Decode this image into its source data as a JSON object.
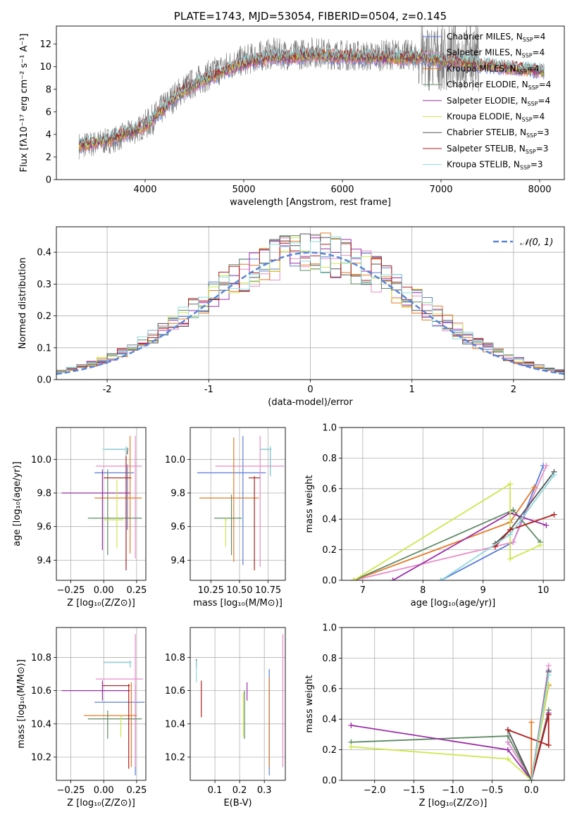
{
  "colors": [
    "#5b7fd8",
    "#e98dc8",
    "#e47a27",
    "#5f8a64",
    "#9b2ea8",
    "#cfe64e",
    "#555555",
    "#b01c1c",
    "#8fd8dc"
  ],
  "charts": [
    {
      "id": "spectrum",
      "type": "line",
      "title": "PLATE=1743, MJD=53054, FIBERID=0504, z=0.145",
      "xlabel": "wavelength [Angstrom, rest frame]",
      "ylabel": "Flux [fλ10⁻¹⁷ erg cm⁻² s⁻¹ A⁻¹]",
      "xlim": [
        3100,
        8250
      ],
      "ylim": [
        0,
        13.6
      ],
      "xticks": [
        4000,
        5000,
        6000,
        7000,
        8000
      ],
      "yticks": [
        0,
        2,
        4,
        6,
        8,
        10,
        12
      ],
      "grid": false,
      "legend_position": "right",
      "data_line": {
        "x": [
          3330,
          3500,
          3700,
          3900,
          4050,
          4200,
          4350,
          4500,
          4700,
          4900,
          5100,
          5300,
          5500,
          5700,
          5900,
          6100,
          6300,
          6500,
          6700,
          6780
        ],
        "y": [
          3.0,
          3.2,
          3.6,
          4.3,
          5.1,
          6.5,
          7.8,
          8.6,
          9.5,
          10.3,
          10.8,
          11.2,
          11.0,
          11.3,
          11.1,
          11.0,
          10.9,
          11.1,
          11.0,
          10.8
        ]
      },
      "model_points": {
        "x": [
          3330,
          3450,
          3550,
          3650,
          3750,
          3850,
          3950,
          4050,
          4150,
          4300,
          4500,
          4700,
          4900,
          5100,
          5300,
          5500,
          5700,
          5900,
          6100,
          6300,
          6500,
          6700,
          6800,
          7000,
          7200,
          7350,
          7500,
          7700,
          7900,
          8050
        ],
        "y": [
          3.0,
          3.2,
          3.4,
          3.6,
          3.9,
          4.2,
          4.6,
          5.1,
          6.0,
          7.3,
          8.4,
          9.2,
          10.0,
          10.5,
          10.9,
          10.8,
          11.1,
          10.9,
          10.9,
          10.8,
          10.8,
          10.7,
          10.9,
          10.5,
          10.4,
          10.2,
          10.1,
          9.9,
          9.7,
          9.6
        ]
      },
      "legend": [
        {
          "label": "Chabrier MILES, N",
          "sub": "SSP",
          "suffix": "=4"
        },
        {
          "label": "Salpeter MILES, N",
          "sub": "SSP",
          "suffix": "=4"
        },
        {
          "label": "Kroupa MILES, N",
          "sub": "SSP",
          "suffix": "=4"
        },
        {
          "label": "Chabrier ELODIE, N",
          "sub": "SSP",
          "suffix": "=4"
        },
        {
          "label": "Salpeter ELODIE, N",
          "sub": "SSP",
          "suffix": "=4"
        },
        {
          "label": "Kroupa ELODIE, N",
          "sub": "SSP",
          "suffix": "=4"
        },
        {
          "label": "Chabrier STELIB, N",
          "sub": "SSP",
          "suffix": "=3"
        },
        {
          "label": "Salpeter STELIB, N",
          "sub": "SSP",
          "suffix": "=3"
        },
        {
          "label": "Kroupa STELIB, N",
          "sub": "SSP",
          "suffix": "=3"
        }
      ]
    },
    {
      "id": "residuals",
      "type": "histogram",
      "xlabel": "(data-model)/error",
      "ylabel": "Normed distribution",
      "xlim": [
        -2.5,
        2.5
      ],
      "ylim": [
        0,
        0.48
      ],
      "xticks": [
        -2,
        -1,
        0,
        1,
        2
      ],
      "yticks": [
        0.0,
        0.1,
        0.2,
        0.3,
        0.4
      ],
      "grid": true,
      "legend_position": "upper right",
      "legend": [
        {
          "label": "𝒩(0, 1)"
        }
      ],
      "bin_width": 0.1
    },
    {
      "id": "age-z",
      "type": "errorbar",
      "xlabel": "Z [log₁₀(Z/Z⊙)]",
      "ylabel": "age  [log₁₀(age/yr)]",
      "xlim": [
        -0.36,
        0.32
      ],
      "ylim": [
        9.28,
        10.19
      ],
      "xticks": [
        -0.25,
        0.0,
        0.25
      ],
      "xticklabels": [
        "−0.25",
        "0.00",
        "0.25"
      ],
      "yticks": [
        9.4,
        9.6,
        9.8,
        10.0
      ],
      "points": [
        {
          "s": 0,
          "x": 0.18,
          "y": 9.92,
          "xl": 0.25,
          "xh": 0.05,
          "yl": 0.34,
          "yh": 0.05
        },
        {
          "s": 1,
          "x": 0.24,
          "y": 9.96,
          "xl": 0.3,
          "xh": 0.05,
          "yl": 0.55,
          "yh": 0.18
        },
        {
          "s": 2,
          "x": 0.2,
          "y": 9.77,
          "xl": 0.27,
          "xh": 0.09,
          "yl": 0.33,
          "yh": 0.37
        },
        {
          "s": 3,
          "x": 0.03,
          "y": 9.65,
          "xl": 0.15,
          "xh": 0.26,
          "yl": 0.22,
          "yh": 0.29
        },
        {
          "s": 4,
          "x": -0.01,
          "y": 9.8,
          "xl": 0.31,
          "xh": 0.21,
          "yl": 0.34,
          "yh": 0.14
        },
        {
          "s": 5,
          "x": 0.1,
          "y": 9.64,
          "xl": 0.1,
          "xh": 0.05,
          "yl": 0.17,
          "yh": 0.24
        },
        {
          "s": 6,
          "x": 0.18,
          "y": 10.06,
          "xl": 0.17,
          "xh": 0.01,
          "yl": 0.03,
          "yh": 0.01
        },
        {
          "s": 7,
          "x": 0.17,
          "y": 9.89,
          "xl": 0.17,
          "xh": 0.04,
          "yl": 0.55,
          "yh": 0.16
        },
        {
          "s": 8,
          "x": 0.17,
          "y": 10.06,
          "xl": 0.18,
          "xh": 0.02,
          "yl": 0.04,
          "yh": 0.02
        }
      ]
    },
    {
      "id": "age-mass",
      "type": "errorbar",
      "xlabel": "mass [log₁₀(M/M⊙)]",
      "ylabel": "",
      "xlim": [
        10.07,
        10.9
      ],
      "ylim": [
        9.28,
        10.19
      ],
      "xticks": [
        10.25,
        10.5,
        10.75
      ],
      "xticklabels": [
        "10.25",
        "10.50",
        "10.75"
      ],
      "yticks": [
        9.4,
        9.6,
        9.8,
        10.0
      ],
      "points": [
        {
          "s": 0,
          "x": 10.53,
          "y": 9.92,
          "xl": 0.4,
          "xh": 0.2,
          "yl": 0.55,
          "yh": 0.22
        },
        {
          "s": 1,
          "x": 10.68,
          "y": 9.96,
          "xl": 0.39,
          "xh": 0.21,
          "yl": 0.6,
          "yh": 0.18
        },
        {
          "s": 2,
          "x": 10.45,
          "y": 9.77,
          "xl": 0.3,
          "xh": 0.22,
          "yl": 0.38,
          "yh": 0.36
        },
        {
          "s": 3,
          "x": 10.43,
          "y": 9.65,
          "xl": 0.15,
          "xh": 0.09,
          "yl": 0.22,
          "yh": 0.14
        },
        {
          "s": 4,
          "x": 10.38,
          "y": 9.8,
          "xl": 0.0,
          "xh": 0.0,
          "yl": 0.0,
          "yh": 0.0
        },
        {
          "s": 5,
          "x": 10.38,
          "y": 9.64,
          "xl": 0.01,
          "xh": 0.01,
          "yl": 0.16,
          "yh": 0.01
        },
        {
          "s": 6,
          "x": 10.77,
          "y": 10.06,
          "xl": 0.09,
          "xh": 0.01,
          "yl": 0.16,
          "yh": 0.01
        },
        {
          "s": 7,
          "x": 10.63,
          "y": 9.89,
          "xl": 0.05,
          "xh": 0.05,
          "yl": 0.55,
          "yh": 0.01
        },
        {
          "s": 8,
          "x": 10.77,
          "y": 10.06,
          "xl": 0.09,
          "xh": 0.01,
          "yl": 0.16,
          "yh": 0.02
        }
      ]
    },
    {
      "id": "weight-age",
      "type": "line",
      "xlabel": "age  [log₁₀(age/yr)]",
      "ylabel": "mass weight",
      "xlim": [
        6.65,
        10.35
      ],
      "ylim": [
        0,
        1.0
      ],
      "xticks": [
        7,
        8,
        9,
        10
      ],
      "yticks": [
        0.0,
        0.2,
        0.4,
        0.6,
        0.8,
        1.0
      ],
      "series": [
        {
          "s": 0,
          "x": [
            8.3,
            9.5,
            10.0
          ],
          "y": [
            0.0,
            0.25,
            0.75
          ]
        },
        {
          "s": 1,
          "x": [
            6.85,
            9.5,
            10.05
          ],
          "y": [
            0.0,
            0.25,
            0.75
          ]
        },
        {
          "s": 2,
          "x": [
            6.85,
            9.45,
            9.85
          ],
          "y": [
            0.0,
            0.38,
            0.61
          ]
        },
        {
          "s": 3,
          "x": [
            6.85,
            9.5,
            9.95
          ],
          "y": [
            0.0,
            0.46,
            0.25
          ]
        },
        {
          "s": 4,
          "x": [
            7.5,
            9.45,
            10.05
          ],
          "y": [
            0.0,
            0.44,
            0.36
          ]
        },
        {
          "s": 5,
          "x": [
            6.85,
            9.45,
            9.45,
            9.95
          ],
          "y": [
            0.0,
            0.63,
            0.14,
            0.23
          ]
        },
        {
          "s": 6,
          "x": [
            9.2,
            9.45,
            10.18
          ],
          "y": [
            0.24,
            0.33,
            0.71
          ]
        },
        {
          "s": 7,
          "x": [
            9.2,
            9.45,
            10.18
          ],
          "y": [
            0.22,
            0.33,
            0.43
          ]
        },
        {
          "s": 8,
          "x": [
            8.3,
            9.45,
            10.18
          ],
          "y": [
            0.0,
            0.3,
            0.69
          ]
        }
      ]
    },
    {
      "id": "mass-z",
      "type": "errorbar",
      "xlabel": "Z [log₁₀(Z/Z⊙)]",
      "ylabel": "mass [log₁₀(M/M⊙)]",
      "xlim": [
        -0.36,
        0.32
      ],
      "ylim": [
        10.06,
        10.98
      ],
      "xticks": [
        -0.25,
        0.0,
        0.25
      ],
      "xticklabels": [
        "−0.25",
        "0.00",
        "0.25"
      ],
      "yticks": [
        10.2,
        10.4,
        10.6,
        10.8
      ],
      "points": [
        {
          "s": 0,
          "x": 0.24,
          "y": 10.53,
          "xl": 0.31,
          "xh": 0.07,
          "yl": 0.44,
          "yh": 0.11
        },
        {
          "s": 1,
          "x": 0.24,
          "y": 10.67,
          "xl": 0.3,
          "xh": 0.06,
          "yl": 0.53,
          "yh": 0.27
        },
        {
          "s": 2,
          "x": 0.21,
          "y": 10.45,
          "xl": 0.36,
          "xh": 0.04,
          "yl": 0.31,
          "yh": 0.2
        },
        {
          "s": 3,
          "x": 0.03,
          "y": 10.43,
          "xl": 0.15,
          "xh": 0.26,
          "yl": 0.12,
          "yh": 0.05
        },
        {
          "s": 4,
          "x": -0.01,
          "y": 10.6,
          "xl": 0.31,
          "xh": 0.21,
          "yl": 0.06,
          "yh": 0.06
        },
        {
          "s": 5,
          "x": 0.13,
          "y": 10.43,
          "xl": 0.0,
          "xh": 0.0,
          "yl": 0.11,
          "yh": 0.02
        },
        {
          "s": 6,
          "x": 0.2,
          "y": 10.77,
          "xl": 0.2,
          "xh": 0.01,
          "yl": 0.03,
          "yh": 0.01
        },
        {
          "s": 7,
          "x": 0.19,
          "y": 10.63,
          "xl": 0.2,
          "xh": 0.01,
          "yl": 0.5,
          "yh": 0.01
        },
        {
          "s": 8,
          "x": 0.2,
          "y": 10.77,
          "xl": 0.2,
          "xh": 0.01,
          "yl": 0.03,
          "yh": 0.01
        }
      ]
    },
    {
      "id": "mass-ebv",
      "type": "errorbar",
      "xlabel": "E(B-V)",
      "ylabel": "",
      "xlim": [
        0.0,
        0.385
      ],
      "ylim": [
        10.06,
        10.98
      ],
      "xticks": [
        0.1,
        0.2,
        0.3
      ],
      "xticklabels": [
        "0.1",
        "0.2",
        "0.3"
      ],
      "yticks": [
        10.2,
        10.4,
        10.6,
        10.8
      ],
      "points": [
        {
          "s": 0,
          "x": 0.32,
          "y": 10.53,
          "xl": 0,
          "xh": 0,
          "yl": 0.44,
          "yh": 0.2
        },
        {
          "s": 1,
          "x": 0.375,
          "y": 10.67,
          "xl": 0,
          "xh": 0,
          "yl": 0.53,
          "yh": 0.27
        },
        {
          "s": 2,
          "x": 0.32,
          "y": 10.45,
          "xl": 0,
          "xh": 0,
          "yl": 0.31,
          "yh": 0.23
        },
        {
          "s": 3,
          "x": 0.22,
          "y": 10.43,
          "xl": 0,
          "xh": 0,
          "yl": 0.12,
          "yh": 0.17
        },
        {
          "s": 4,
          "x": 0.23,
          "y": 10.6,
          "xl": 0,
          "xh": 0,
          "yl": 0.06,
          "yh": 0.05
        },
        {
          "s": 5,
          "x": 0.215,
          "y": 10.43,
          "xl": 0,
          "xh": 0,
          "yl": 0.11,
          "yh": 0.16
        },
        {
          "s": 6,
          "x": 0.025,
          "y": 10.77,
          "xl": 0,
          "xh": 0,
          "yl": 0.03,
          "yh": 0.02
        },
        {
          "s": 7,
          "x": 0.045,
          "y": 10.63,
          "xl": 0,
          "xh": 0,
          "yl": 0.19,
          "yh": 0.03
        },
        {
          "s": 8,
          "x": 0.025,
          "y": 10.77,
          "xl": 0,
          "xh": 0,
          "yl": 0.12,
          "yh": 0.01
        }
      ]
    },
    {
      "id": "weight-z",
      "type": "line",
      "xlabel": "Z [log₁₀(Z/Z⊙)]",
      "ylabel": "mass weight",
      "xlim": [
        -2.42,
        0.42
      ],
      "ylim": [
        0,
        1.0
      ],
      "xticks": [
        -2.0,
        -1.5,
        -1.0,
        -0.5,
        0.0
      ],
      "xticklabels": [
        "−2.0",
        "−1.5",
        "−1.0",
        "−0.5",
        "0.0"
      ],
      "yticks": [
        0.0,
        0.2,
        0.4,
        0.6,
        0.8,
        1.0
      ],
      "series": [
        {
          "s": 0,
          "x": [
            -0.3,
            0.0,
            0.22
          ],
          "y": [
            0.25,
            0.0,
            0.72
          ]
        },
        {
          "s": 1,
          "x": [
            -0.3,
            0.0,
            0.22
          ],
          "y": [
            0.25,
            0.0,
            0.75
          ]
        },
        {
          "s": 2,
          "x": [
            0.0,
            0.0,
            0.22
          ],
          "y": [
            0.38,
            0.0,
            0.62
          ]
        },
        {
          "s": 3,
          "x": [
            -2.3,
            -0.3,
            0.0,
            0.22
          ],
          "y": [
            0.25,
            0.29,
            0.0,
            0.46
          ]
        },
        {
          "s": 4,
          "x": [
            -2.3,
            -0.3,
            0.0,
            0.22
          ],
          "y": [
            0.36,
            0.2,
            0.0,
            0.44
          ]
        },
        {
          "s": 5,
          "x": [
            -2.3,
            -0.3,
            0.0,
            0.22
          ],
          "y": [
            0.22,
            0.14,
            0.0,
            0.63
          ]
        },
        {
          "s": 6,
          "x": [
            -0.3,
            0.0,
            0.22
          ],
          "y": [
            0.33,
            0.0,
            0.71
          ]
        },
        {
          "s": 7,
          "x": [
            -0.3,
            0.22,
            0.22,
            0.0
          ],
          "y": [
            0.33,
            0.23,
            0.43,
            0.0
          ]
        },
        {
          "s": 8,
          "x": [
            0.0,
            0.22
          ],
          "y": [
            0.0,
            0.69
          ]
        }
      ]
    }
  ]
}
